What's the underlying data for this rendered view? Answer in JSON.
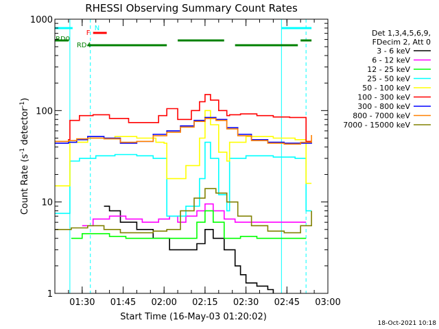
{
  "chart_data": {
    "type": "line",
    "title": "RHESSI Observing Summary Count Rates",
    "xlabel": "Start Time (16-May-03 01:20:02)",
    "ylabel_main": "Count Rate (s",
    "ylabel_sup1": "-1",
    "ylabel_mid": " detector",
    "ylabel_sup2": "-1",
    "ylabel_end": ")",
    "yscale": "log",
    "ylim": [
      1,
      1000
    ],
    "xlim_minutes": [
      0,
      100
    ],
    "y_ticks": [
      {
        "value": 1,
        "label": "1"
      },
      {
        "value": 10,
        "label": "10"
      },
      {
        "value": 100,
        "label": "100"
      },
      {
        "value": 1000,
        "label": "1000"
      }
    ],
    "x_ticks": [
      {
        "minute": 10,
        "label": "01:30"
      },
      {
        "minute": 25,
        "label": "01:45"
      },
      {
        "minute": 40,
        "label": "02:00"
      },
      {
        "minute": 55,
        "label": "02:15"
      },
      {
        "minute": 70,
        "label": "02:30"
      },
      {
        "minute": 85,
        "label": "02:45"
      },
      {
        "minute": 100,
        "label": "03:00"
      }
    ],
    "legend_header": [
      "Det 1,3,4,5,6,9,",
      "FDecim 2, Att 0"
    ],
    "series": [
      {
        "name": "3 - 6 keV",
        "color": "#000000",
        "data": [
          [
            18,
            9
          ],
          [
            20,
            8
          ],
          [
            24,
            6
          ],
          [
            30,
            5
          ],
          [
            36,
            4
          ],
          [
            42,
            3
          ],
          [
            48,
            3
          ],
          [
            52,
            3.5
          ],
          [
            55,
            5
          ],
          [
            58,
            4
          ],
          [
            62,
            3
          ],
          [
            66,
            2
          ],
          [
            68,
            1.6
          ],
          [
            70,
            1.3
          ],
          [
            74,
            1.2
          ],
          [
            78,
            1.1
          ],
          [
            80,
            1
          ]
        ]
      },
      {
        "name": "6 - 12 keV",
        "color": "#ff00ff",
        "data": [
          [
            10,
            5.5
          ],
          [
            14,
            6.5
          ],
          [
            20,
            7
          ],
          [
            26,
            6.5
          ],
          [
            32,
            6
          ],
          [
            38,
            6.5
          ],
          [
            42,
            7
          ],
          [
            45,
            6
          ],
          [
            48,
            7
          ],
          [
            52,
            8
          ],
          [
            55,
            9.5
          ],
          [
            58,
            8
          ],
          [
            62,
            6.5
          ],
          [
            66,
            6
          ],
          [
            72,
            6
          ],
          [
            80,
            6
          ],
          [
            88,
            6
          ],
          [
            92,
            6
          ]
        ]
      },
      {
        "name": "12 - 25 keV",
        "color": "#00ff00",
        "data": [
          [
            6,
            4
          ],
          [
            10,
            4.5
          ],
          [
            14,
            4.5
          ],
          [
            20,
            4.2
          ],
          [
            26,
            4
          ],
          [
            32,
            4
          ],
          [
            38,
            4
          ],
          [
            44,
            4
          ],
          [
            48,
            4
          ],
          [
            52,
            6
          ],
          [
            55,
            8
          ],
          [
            58,
            6
          ],
          [
            62,
            4
          ],
          [
            68,
            4.2
          ],
          [
            74,
            4
          ],
          [
            80,
            4
          ],
          [
            88,
            4
          ],
          [
            92,
            4
          ]
        ]
      },
      {
        "name": "25 - 50 keV",
        "color": "#00ffff",
        "data": [
          [
            0,
            7.5
          ],
          [
            5,
            7.5
          ],
          [
            5.5,
            28
          ],
          [
            9,
            30
          ],
          [
            15,
            32
          ],
          [
            22,
            33
          ],
          [
            30,
            32
          ],
          [
            36,
            30
          ],
          [
            40,
            30
          ],
          [
            41,
            7
          ],
          [
            48,
            9
          ],
          [
            53,
            18
          ],
          [
            55,
            45
          ],
          [
            57,
            30
          ],
          [
            60,
            12
          ],
          [
            63,
            8
          ],
          [
            64,
            30
          ],
          [
            70,
            32
          ],
          [
            80,
            31
          ],
          [
            88,
            30
          ],
          [
            91,
            30
          ],
          [
            92,
            8
          ],
          [
            94,
            8
          ]
        ]
      },
      {
        "name": "50 - 100 keV",
        "color": "#ffff00",
        "data": [
          [
            0,
            15
          ],
          [
            5,
            15
          ],
          [
            5.5,
            45
          ],
          [
            12,
            50
          ],
          [
            22,
            52
          ],
          [
            30,
            50
          ],
          [
            37,
            45
          ],
          [
            40,
            44
          ],
          [
            41,
            18
          ],
          [
            48,
            25
          ],
          [
            53,
            50
          ],
          [
            55,
            100
          ],
          [
            57,
            70
          ],
          [
            60,
            35
          ],
          [
            63,
            28
          ],
          [
            64,
            45
          ],
          [
            70,
            52
          ],
          [
            80,
            50
          ],
          [
            88,
            48
          ],
          [
            91,
            48
          ],
          [
            92,
            16
          ],
          [
            94,
            16
          ]
        ]
      },
      {
        "name": "100 - 300 keV",
        "color": "#ff0000",
        "data": [
          [
            0,
            46
          ],
          [
            5,
            48
          ],
          [
            5.5,
            78
          ],
          [
            9,
            88
          ],
          [
            14,
            90
          ],
          [
            20,
            82
          ],
          [
            27,
            74
          ],
          [
            33,
            74
          ],
          [
            38,
            88
          ],
          [
            41,
            105
          ],
          [
            45,
            80
          ],
          [
            50,
            100
          ],
          [
            53,
            125
          ],
          [
            55,
            150
          ],
          [
            57,
            130
          ],
          [
            60,
            100
          ],
          [
            63,
            88
          ],
          [
            64,
            90
          ],
          [
            68,
            92
          ],
          [
            74,
            88
          ],
          [
            80,
            85
          ],
          [
            86,
            84
          ],
          [
            91,
            84
          ],
          [
            92,
            46
          ],
          [
            94,
            46
          ]
        ]
      },
      {
        "name": "300 - 800 keV",
        "color": "#0000ff",
        "data": [
          [
            0,
            44
          ],
          [
            5,
            45
          ],
          [
            8,
            48
          ],
          [
            12,
            52
          ],
          [
            18,
            50
          ],
          [
            24,
            44
          ],
          [
            30,
            46
          ],
          [
            36,
            55
          ],
          [
            41,
            60
          ],
          [
            46,
            68
          ],
          [
            51,
            78
          ],
          [
            55,
            84
          ],
          [
            59,
            80
          ],
          [
            63,
            65
          ],
          [
            67,
            55
          ],
          [
            72,
            48
          ],
          [
            78,
            45
          ],
          [
            84,
            44
          ],
          [
            90,
            44
          ],
          [
            94,
            45
          ]
        ]
      },
      {
        "name": "800 - 7000 keV",
        "color": "#ff8000",
        "data": [
          [
            0,
            46
          ],
          [
            5,
            47
          ],
          [
            8,
            49
          ],
          [
            12,
            50
          ],
          [
            18,
            49
          ],
          [
            24,
            45
          ],
          [
            30,
            46
          ],
          [
            36,
            53
          ],
          [
            41,
            58
          ],
          [
            46,
            66
          ],
          [
            51,
            76
          ],
          [
            55,
            82
          ],
          [
            59,
            78
          ],
          [
            63,
            63
          ],
          [
            67,
            53
          ],
          [
            72,
            47
          ],
          [
            78,
            44
          ],
          [
            84,
            43
          ],
          [
            90,
            45
          ],
          [
            94,
            54
          ]
        ]
      },
      {
        "name": "7000 - 15000 keV",
        "color": "#808000",
        "data": [
          [
            0,
            5
          ],
          [
            6,
            5.2
          ],
          [
            12,
            5.5
          ],
          [
            18,
            5
          ],
          [
            24,
            4.6
          ],
          [
            30,
            4.6
          ],
          [
            36,
            4.8
          ],
          [
            41,
            5
          ],
          [
            46,
            8
          ],
          [
            51,
            11
          ],
          [
            55,
            14
          ],
          [
            59,
            12.5
          ],
          [
            63,
            10
          ],
          [
            67,
            7
          ],
          [
            72,
            5.5
          ],
          [
            78,
            4.8
          ],
          [
            84,
            4.6
          ],
          [
            90,
            5.5
          ],
          [
            94,
            8
          ]
        ]
      }
    ],
    "annotations": {
      "saa_label": "N",
      "flare_label": "F",
      "rd0_label": "RD0",
      "rd4_label": "RD4",
      "saa_color": "#00ffff",
      "flare_color": "#ff0000",
      "rd_color": "#008000",
      "saa_bars": [
        [
          0,
          6.5
        ],
        [
          83,
          94
        ]
      ],
      "flare_bars": [
        [
          14,
          19
        ]
      ],
      "rd0_bars": [
        [
          0,
          5
        ],
        [
          12,
          41
        ],
        [
          45,
          62
        ],
        [
          66,
          89
        ],
        [
          90,
          94
        ]
      ],
      "rd4_bars": [],
      "saa_lines_solid": [
        5.5,
        83
      ],
      "saa_lines_dashed": [
        13,
        92
      ]
    },
    "grid": false,
    "legend_position": "right"
  },
  "footer": {
    "date": "18-Oct-2021 10:18"
  }
}
